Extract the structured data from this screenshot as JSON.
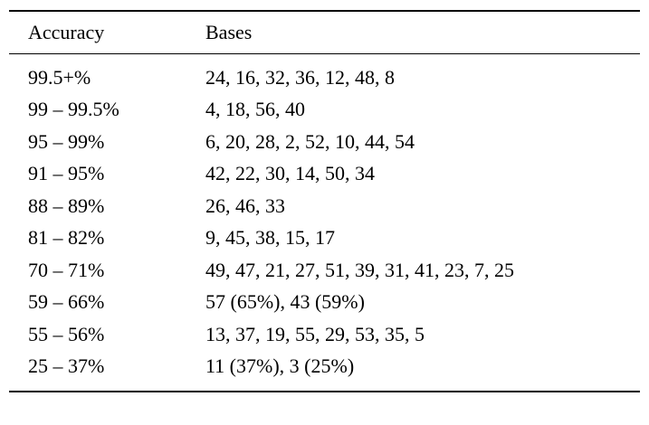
{
  "chart_data": {
    "type": "table",
    "columns": [
      "Accuracy",
      "Bases"
    ],
    "rows": [
      {
        "accuracy": "99.5+%",
        "bases": "24, 16, 32, 36, 12, 48, 8"
      },
      {
        "accuracy": "99 – 99.5%",
        "bases": "4, 18, 56, 40"
      },
      {
        "accuracy": "95 – 99%",
        "bases": "6, 20, 28, 2, 52, 10, 44, 54"
      },
      {
        "accuracy": "91 – 95%",
        "bases": "42, 22, 30, 14, 50, 34"
      },
      {
        "accuracy": "88 – 89%",
        "bases": "26, 46, 33"
      },
      {
        "accuracy": "81 – 82%",
        "bases": "9, 45, 38, 15, 17"
      },
      {
        "accuracy": "70 – 71%",
        "bases": "49, 47, 21, 27, 51, 39, 31, 41, 23, 7, 25"
      },
      {
        "accuracy": "59 – 66%",
        "bases": "57 (65%), 43 (59%)"
      },
      {
        "accuracy": "55 – 56%",
        "bases": "13, 37, 19, 55, 29, 53, 35, 5"
      },
      {
        "accuracy": "25 – 37%",
        "bases": "11 (37%), 3 (25%)"
      }
    ],
    "layout": {
      "grid": "booktabs-rules-only",
      "legend": "none"
    },
    "colors": {
      "background": "#ffffff",
      "text": "#000000",
      "rule": "#000000"
    }
  }
}
